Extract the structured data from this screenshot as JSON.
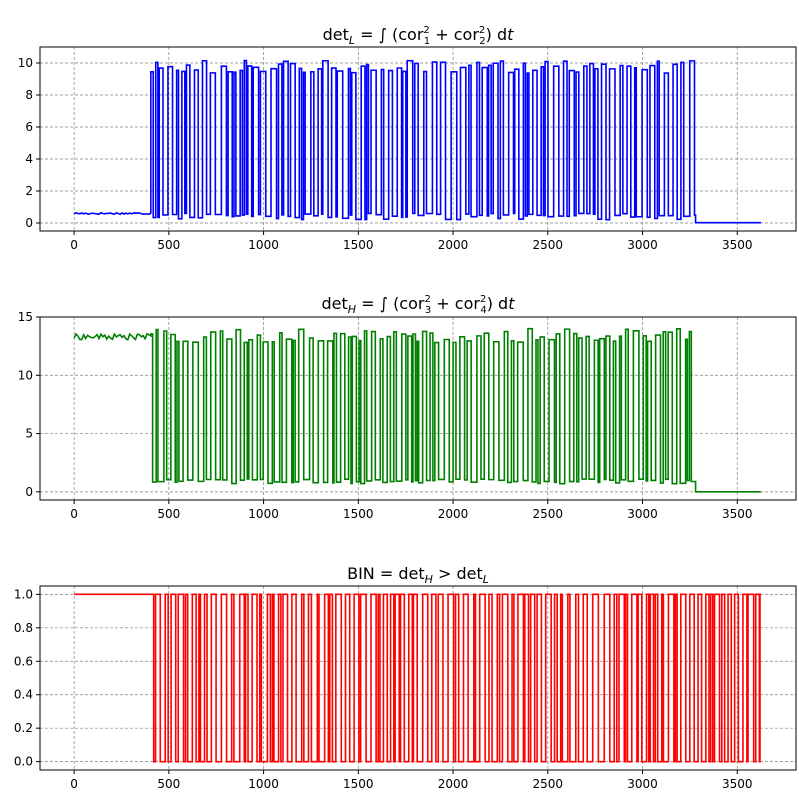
{
  "chart_data": [
    {
      "type": "line",
      "title_parts": [
        "det",
        "L",
        " = ∫ (cor",
        "2",
        "1",
        " + cor",
        "2",
        "2",
        ") d",
        "t"
      ],
      "xlim": [
        -180,
        3810
      ],
      "ylim": [
        -0.5,
        11.0
      ],
      "xticks": [
        "0",
        "500",
        "1000",
        "1500",
        "2000",
        "2500",
        "3000",
        "3500"
      ],
      "xtick_values": [
        0,
        500,
        1000,
        1500,
        2000,
        2500,
        3000,
        3500
      ],
      "yticks": [
        "0",
        "2",
        "4",
        "6",
        "8",
        "10"
      ],
      "ytick_values": [
        0,
        2,
        4,
        6,
        8,
        10
      ],
      "grid": true,
      "color": "#0000ff",
      "x_max": 3625,
      "segments": [
        {
          "x_start": 0,
          "x_end": 405,
          "level": 0.6
        },
        {
          "x_start": 405,
          "x_end": 3280,
          "switching": true,
          "high": 9.6,
          "low": 0.4
        },
        {
          "x_start": 3280,
          "x_end": 3625,
          "level": 0.02
        }
      ]
    },
    {
      "type": "line",
      "title_parts": [
        "det",
        "H",
        " = ∫ (cor",
        "2",
        "3",
        " + cor",
        "2",
        "4",
        ") d",
        "t"
      ],
      "xlim": [
        -180,
        3810
      ],
      "ylim": [
        -0.7,
        15.0
      ],
      "xticks": [
        "0",
        "500",
        "1000",
        "1500",
        "2000",
        "2500",
        "3000",
        "3500"
      ],
      "xtick_values": [
        0,
        500,
        1000,
        1500,
        2000,
        2500,
        3000,
        3500
      ],
      "yticks": [
        "0",
        "5",
        "10",
        "15"
      ],
      "ytick_values": [
        0,
        5,
        10,
        15
      ],
      "grid": true,
      "color": "#008000",
      "x_max": 3625,
      "segments": [
        {
          "x_start": 0,
          "x_end": 405,
          "level": 13.3
        },
        {
          "x_start": 405,
          "x_end": 3280,
          "switching": true,
          "high": 13.4,
          "low": 0.9
        },
        {
          "x_start": 3280,
          "x_end": 3625,
          "level": 0.0
        }
      ]
    },
    {
      "type": "line",
      "title_parts": [
        "BIN = det",
        "H",
        " > det",
        "L"
      ],
      "xlim": [
        -180,
        3810
      ],
      "ylim": [
        -0.05,
        1.05
      ],
      "xticks": [
        "0",
        "500",
        "1000",
        "1500",
        "2000",
        "2500",
        "3000",
        "3500"
      ],
      "xtick_values": [
        0,
        500,
        1000,
        1500,
        2000,
        2500,
        3000,
        3500
      ],
      "yticks": [
        "0.0",
        "0.2",
        "0.4",
        "0.6",
        "0.8",
        "1.0"
      ],
      "ytick_values": [
        0,
        0.2,
        0.4,
        0.6,
        0.8,
        1.0
      ],
      "grid": true,
      "color": "#ff0000",
      "x_max": 3625,
      "segments": [
        {
          "x_start": 0,
          "x_end": 405,
          "level": 1.0
        },
        {
          "x_start": 405,
          "x_end": 3620,
          "switching": true,
          "high": 1.0,
          "low": 0.0
        },
        {
          "x_start": 3620,
          "x_end": 3625,
          "level": 1.0
        }
      ]
    }
  ]
}
